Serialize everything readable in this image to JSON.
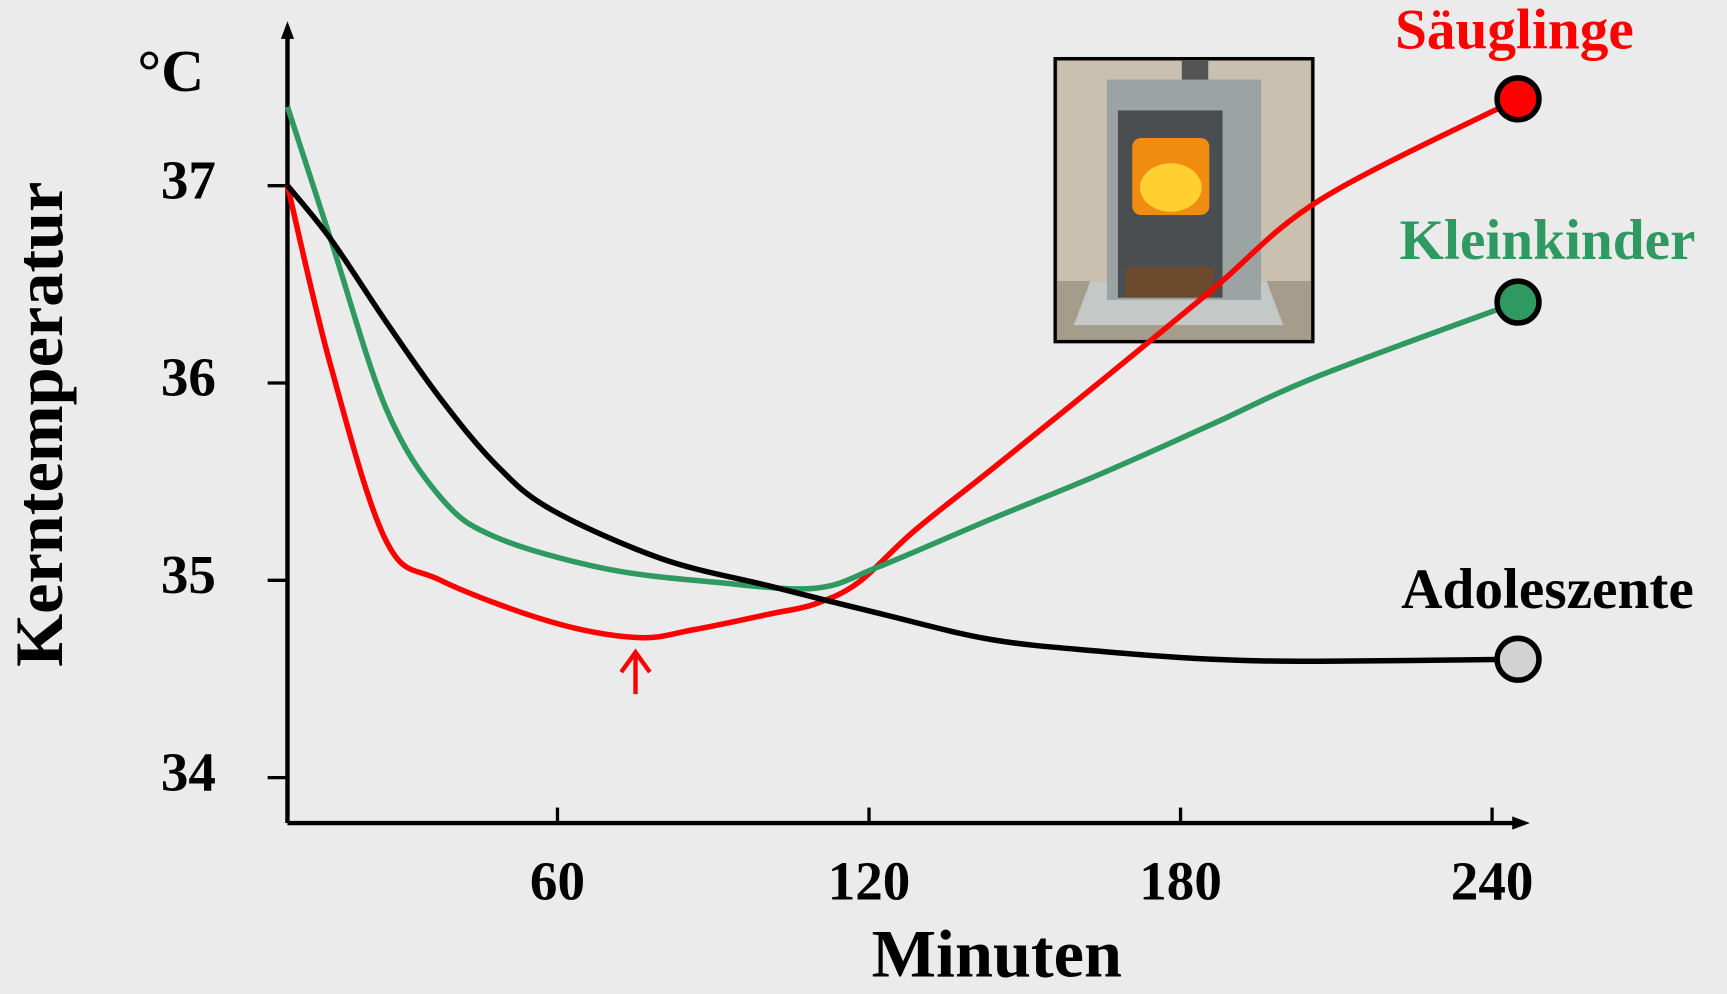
{
  "chart_data": {
    "type": "line",
    "y_label": "Kerntemperatur",
    "y_unit": "°C",
    "x_label": "Minuten",
    "xlim": [
      8,
      246
    ],
    "ylim": [
      33.77,
      37.8
    ],
    "xticks": [
      60,
      120,
      180,
      240
    ],
    "yticks": [
      34,
      35,
      36,
      37
    ],
    "series": [
      {
        "name": "Säuglinge",
        "color": "#ff0000",
        "marker_color": "#ff0000",
        "x": [
          8,
          16.3,
          27,
          37.5,
          58.7,
          75.3,
          86.3,
          101,
          109.6,
          118,
          128.7,
          143.5,
          164.7,
          186,
          207,
          245
        ],
        "values": [
          37.0,
          36.09,
          35.2,
          35.0,
          34.79,
          34.71,
          34.75,
          34.83,
          34.88,
          34.99,
          35.25,
          35.56,
          36.01,
          36.47,
          36.93,
          37.44
        ]
      },
      {
        "name": "Kleinkinder",
        "color": "#2e9960",
        "marker_color": "#2e9960",
        "x": [
          8,
          16.3,
          27,
          37.5,
          48,
          69,
          90.5,
          109.6,
          122,
          143.5,
          164.7,
          186,
          207,
          245
        ],
        "values": [
          37.4,
          36.73,
          35.87,
          35.42,
          35.22,
          35.06,
          34.99,
          34.96,
          35.07,
          35.31,
          35.54,
          35.79,
          36.04,
          36.41
        ]
      },
      {
        "name": "Adoleszente",
        "color": "#000000",
        "marker_color": "#d3d3d3",
        "x": [
          8,
          16.3,
          27,
          37.5,
          48,
          58.7,
          80,
          101,
          122.3,
          143.5,
          164.7,
          186,
          207,
          245
        ],
        "values": [
          37.0,
          36.73,
          36.31,
          35.92,
          35.59,
          35.36,
          35.11,
          34.97,
          34.83,
          34.7,
          34.64,
          34.6,
          34.59,
          34.6
        ]
      }
    ]
  }
}
